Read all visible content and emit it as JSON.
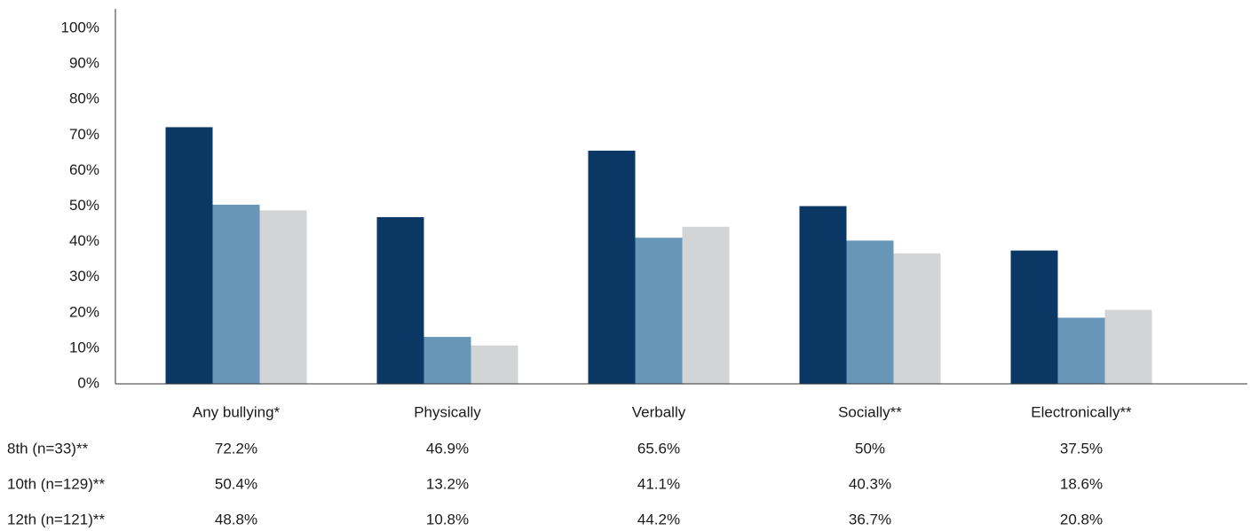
{
  "chart_data": {
    "type": "bar",
    "categories": [
      "Any bullying*",
      "Physically",
      "Verbally",
      "Socially**",
      "Electronically**"
    ],
    "series": [
      {
        "name": "8th (n=33)**",
        "color": "#0b3764",
        "values": [
          72.2,
          46.9,
          65.6,
          50,
          37.5
        ],
        "value_labels": [
          "72.2%",
          "46.9%",
          "65.6%",
          "50%",
          "37.5%"
        ]
      },
      {
        "name": "10th (n=129)**",
        "color": "#6796b9",
        "values": [
          50.4,
          13.2,
          41.1,
          40.3,
          18.6
        ],
        "value_labels": [
          "50.4%",
          "13.2%",
          "41.1%",
          "40.3%",
          "18.6%"
        ]
      },
      {
        "name": "12th (n=121)**",
        "color": "#d3d4d6",
        "values": [
          48.8,
          10.8,
          44.2,
          36.7,
          20.8
        ],
        "value_labels": [
          "48.8%",
          "10.8%",
          "44.2%",
          "36.7%",
          "20.8%"
        ]
      }
    ],
    "ylim": [
      0,
      100
    ],
    "yticks": [
      {
        "value": 0,
        "label": "0%"
      },
      {
        "value": 10,
        "label": "10%"
      },
      {
        "value": 20,
        "label": "20%"
      },
      {
        "value": 30,
        "label": "30%"
      },
      {
        "value": 40,
        "label": "40%"
      },
      {
        "value": 50,
        "label": "50%"
      },
      {
        "value": 60,
        "label": "60%"
      },
      {
        "value": 70,
        "label": "70%"
      },
      {
        "value": 80,
        "label": "80%"
      },
      {
        "value": 90,
        "label": "90%"
      },
      {
        "value": 100,
        "label": "100%"
      }
    ],
    "grid": false
  }
}
